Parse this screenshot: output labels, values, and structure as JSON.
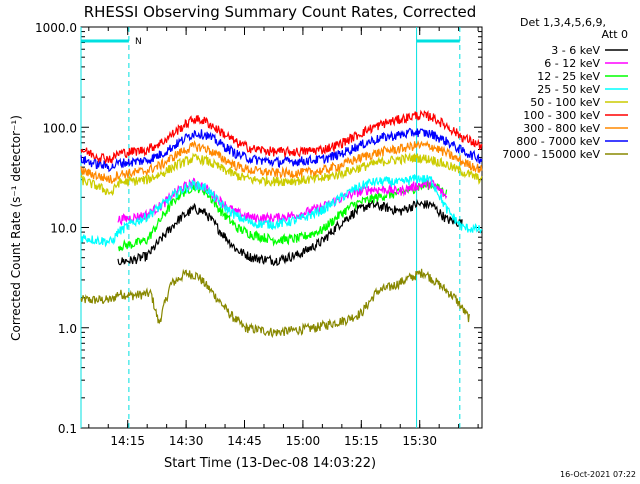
{
  "chart_data": {
    "type": "line",
    "title": "RHESSI Observing Summary Count Rates, Corrected",
    "xlabel": "Start Time (13-Dec-08 14:03:22)",
    "ylabel": "Corrected Count Rate (s⁻¹ detector⁻¹)",
    "yscale": "log",
    "ylim": [
      0.1,
      1000
    ],
    "xlim_minutes": [
      0,
      45
    ],
    "x_ticks": [
      {
        "min": 12,
        "label": "14:15"
      },
      {
        "min": 27,
        "label": "14:30"
      },
      {
        "min": 42,
        "label": "14:45"
      },
      {
        "min": 57,
        "label": "15:00"
      },
      {
        "min": 72,
        "label": "15:15"
      },
      {
        "min": 87,
        "label": "15:30"
      }
    ],
    "y_ticks": [
      {
        "v": 0.1,
        "label": "0.1"
      },
      {
        "v": 1,
        "label": "1.0"
      },
      {
        "v": 10,
        "label": "10.0"
      },
      {
        "v": 100,
        "label": "100.0"
      },
      {
        "v": 1000,
        "label": "1000.0"
      }
    ],
    "legend_header": [
      "Det 1,3,4,5,6,9,",
      "Att 0"
    ],
    "legend_position": "right",
    "annotation_n": "N",
    "footer_date": "16-Oct-2021 07:22",
    "x_axis_minutes_range": [
      0,
      103
    ],
    "night_markers_min": [
      0,
      12.3,
      86.2,
      97.3
    ],
    "series": [
      {
        "name": "3 - 6 keV",
        "color": "#000000",
        "points": [
          [
            9.5,
            4.6
          ],
          [
            13,
            4.7
          ],
          [
            17,
            5.2
          ],
          [
            21,
            8
          ],
          [
            25,
            12
          ],
          [
            29,
            15.5
          ],
          [
            32,
            14
          ],
          [
            36,
            9
          ],
          [
            40,
            6
          ],
          [
            44,
            5
          ],
          [
            50,
            4.7
          ],
          [
            56,
            5.4
          ],
          [
            62,
            7.3
          ],
          [
            66,
            10.5
          ],
          [
            70,
            14
          ],
          [
            74,
            17
          ],
          [
            78,
            16
          ],
          [
            82,
            14.5
          ],
          [
            86,
            17
          ],
          [
            90,
            17
          ],
          [
            94,
            12
          ],
          [
            98,
            11
          ]
        ]
      },
      {
        "name": "6 - 12 keV",
        "color": "#ff00ff",
        "points": [
          [
            9.5,
            12
          ],
          [
            13,
            12.5
          ],
          [
            17,
            13.5
          ],
          [
            21,
            17
          ],
          [
            25,
            24
          ],
          [
            29,
            28
          ],
          [
            32,
            25
          ],
          [
            36,
            18
          ],
          [
            40,
            14
          ],
          [
            44,
            12.5
          ],
          [
            50,
            12.5
          ],
          [
            56,
            13.5
          ],
          [
            62,
            16
          ],
          [
            66,
            19
          ],
          [
            70,
            22
          ],
          [
            74,
            24
          ],
          [
            78,
            24
          ],
          [
            82,
            23
          ],
          [
            86,
            26
          ],
          [
            90,
            28
          ],
          [
            94,
            20
          ]
        ]
      },
      {
        "name": "12 - 25 keV",
        "color": "#00ff00",
        "points": [
          [
            9.5,
            6.5
          ],
          [
            13,
            6.8
          ],
          [
            17,
            7.5
          ],
          [
            21,
            13
          ],
          [
            25,
            21
          ],
          [
            29,
            26
          ],
          [
            32,
            23
          ],
          [
            36,
            14.5
          ],
          [
            40,
            10
          ],
          [
            44,
            8.5
          ],
          [
            50,
            7.5
          ],
          [
            56,
            7.8
          ],
          [
            62,
            9.5
          ],
          [
            66,
            13
          ],
          [
            70,
            17
          ],
          [
            74,
            19
          ],
          [
            78,
            21
          ],
          [
            82,
            22
          ],
          [
            86,
            25
          ],
          [
            90,
            27
          ],
          [
            94,
            22
          ]
        ]
      },
      {
        "name": "25 - 50 keV",
        "color": "#00ffff",
        "points": [
          [
            0,
            8
          ],
          [
            4,
            7.5
          ],
          [
            8,
            7.2
          ],
          [
            9.5,
            9
          ],
          [
            13,
            11
          ],
          [
            17,
            13
          ],
          [
            21,
            17
          ],
          [
            25,
            23
          ],
          [
            29,
            27
          ],
          [
            32,
            25
          ],
          [
            36,
            17
          ],
          [
            40,
            13
          ],
          [
            44,
            11
          ],
          [
            50,
            10.8
          ],
          [
            56,
            12
          ],
          [
            62,
            15
          ],
          [
            66,
            19
          ],
          [
            70,
            24
          ],
          [
            74,
            28
          ],
          [
            78,
            29
          ],
          [
            82,
            28
          ],
          [
            86,
            31
          ],
          [
            90,
            30
          ],
          [
            94,
            15
          ],
          [
            98,
            10
          ],
          [
            103,
            9.5
          ]
        ]
      },
      {
        "name": "50 - 100 keV",
        "color": "#cccc00",
        "points": [
          [
            0,
            30
          ],
          [
            4,
            26
          ],
          [
            8,
            22
          ],
          [
            9.5,
            28
          ],
          [
            13,
            29
          ],
          [
            17,
            30
          ],
          [
            21,
            35
          ],
          [
            25,
            43
          ],
          [
            29,
            49
          ],
          [
            32,
            47
          ],
          [
            36,
            39
          ],
          [
            40,
            33
          ],
          [
            44,
            30
          ],
          [
            50,
            29
          ],
          [
            56,
            29.5
          ],
          [
            62,
            31
          ],
          [
            66,
            34
          ],
          [
            70,
            38
          ],
          [
            74,
            42
          ],
          [
            78,
            46
          ],
          [
            82,
            48
          ],
          [
            86,
            50
          ],
          [
            90,
            48
          ],
          [
            94,
            42
          ],
          [
            98,
            36
          ],
          [
            103,
            30
          ]
        ]
      },
      {
        "name": "100 - 300 keV",
        "color": "#ff0000",
        "points": [
          [
            0,
            60
          ],
          [
            4,
            52
          ],
          [
            8,
            48
          ],
          [
            9.5,
            55
          ],
          [
            13,
            57
          ],
          [
            17,
            60
          ],
          [
            21,
            72
          ],
          [
            25,
            95
          ],
          [
            29,
            122
          ],
          [
            32,
            115
          ],
          [
            36,
            90
          ],
          [
            40,
            70
          ],
          [
            44,
            61
          ],
          [
            50,
            57
          ],
          [
            56,
            57
          ],
          [
            62,
            60
          ],
          [
            66,
            67
          ],
          [
            70,
            80
          ],
          [
            74,
            96
          ],
          [
            78,
            110
          ],
          [
            82,
            120
          ],
          [
            86,
            132
          ],
          [
            90,
            128
          ],
          [
            94,
            103
          ],
          [
            98,
            80
          ],
          [
            103,
            64
          ]
        ]
      },
      {
        "name": "300 - 800 keV",
        "color": "#ff8800",
        "points": [
          [
            0,
            37
          ],
          [
            4,
            33
          ],
          [
            8,
            30
          ],
          [
            9.5,
            34
          ],
          [
            13,
            35
          ],
          [
            17,
            37
          ],
          [
            21,
            43
          ],
          [
            25,
            55
          ],
          [
            29,
            65
          ],
          [
            32,
            62
          ],
          [
            36,
            50
          ],
          [
            40,
            41
          ],
          [
            44,
            37
          ],
          [
            50,
            35
          ],
          [
            56,
            35
          ],
          [
            62,
            37
          ],
          [
            66,
            41
          ],
          [
            70,
            47
          ],
          [
            74,
            53
          ],
          [
            78,
            58
          ],
          [
            82,
            61
          ],
          [
            86,
            66
          ],
          [
            90,
            65
          ],
          [
            94,
            55
          ],
          [
            98,
            45
          ],
          [
            103,
            38
          ]
        ]
      },
      {
        "name": "800 - 7000 keV",
        "color": "#0000ff",
        "points": [
          [
            0,
            48
          ],
          [
            4,
            43
          ],
          [
            8,
            40
          ],
          [
            9.5,
            44
          ],
          [
            13,
            45
          ],
          [
            17,
            47
          ],
          [
            21,
            55
          ],
          [
            25,
            70
          ],
          [
            29,
            88
          ],
          [
            32,
            85
          ],
          [
            36,
            68
          ],
          [
            40,
            54
          ],
          [
            44,
            48
          ],
          [
            50,
            45
          ],
          [
            56,
            46
          ],
          [
            62,
            48
          ],
          [
            66,
            53
          ],
          [
            70,
            62
          ],
          [
            74,
            72
          ],
          [
            78,
            80
          ],
          [
            82,
            84
          ],
          [
            86,
            90
          ],
          [
            90,
            86
          ],
          [
            94,
            72
          ],
          [
            98,
            58
          ],
          [
            103,
            48
          ]
        ]
      },
      {
        "name": "7000 - 15000 keV",
        "color": "#888800",
        "points": [
          [
            0,
            1.9
          ],
          [
            4,
            1.9
          ],
          [
            8,
            1.9
          ],
          [
            9.5,
            2.2
          ],
          [
            13,
            2.1
          ],
          [
            18,
            2.2
          ],
          [
            20,
            1.1
          ],
          [
            23,
            2.7
          ],
          [
            27,
            3.5
          ],
          [
            30,
            3.3
          ],
          [
            34,
            2.2
          ],
          [
            38,
            1.4
          ],
          [
            42,
            1.0
          ],
          [
            50,
            0.9
          ],
          [
            60,
            1.0
          ],
          [
            68,
            1.2
          ],
          [
            72,
            1.4
          ],
          [
            76,
            2.3
          ],
          [
            80,
            2.6
          ],
          [
            84,
            3.1
          ],
          [
            88,
            3.6
          ],
          [
            92,
            2.7
          ],
          [
            96,
            2.0
          ],
          [
            100,
            1.2
          ]
        ]
      }
    ]
  }
}
